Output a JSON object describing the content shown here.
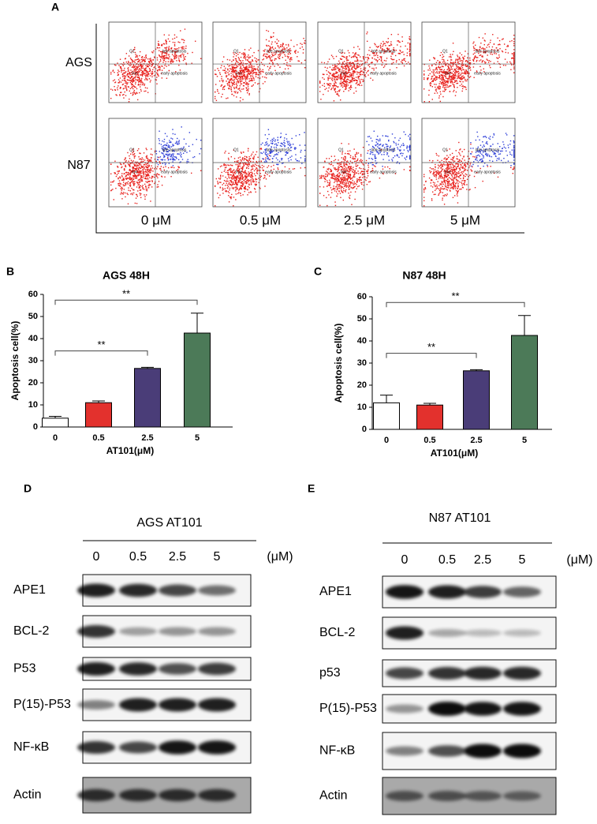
{
  "panel_a": {
    "label": "A",
    "rows": [
      "AGS",
      "N87"
    ],
    "concentrations": [
      "0 μM",
      "0.5 μM",
      "2.5 μM",
      "5 μM"
    ],
    "quadrant_labels": [
      "Q1",
      "late apoptosis",
      "live",
      "early apoptosis"
    ]
  },
  "chart_data": [
    {
      "type": "bar",
      "panel_label": "B",
      "title": "AGS 48H",
      "x_label": "AT101(μM)",
      "y_label": "Apoptosis cell(%)",
      "categories": [
        "0",
        "0.5",
        "2.5",
        "5"
      ],
      "values": [
        4,
        11,
        26.5,
        42.5
      ],
      "errors": [
        0.8,
        0.8,
        0.5,
        9
      ],
      "colors": [
        "#ffffff",
        "#e3312d",
        "#4a3d78",
        "#4c7a58"
      ],
      "ylim": [
        0,
        60
      ],
      "yticks": [
        0,
        10,
        20,
        30,
        40,
        50,
        60
      ],
      "annotations": [
        "**",
        "**"
      ]
    },
    {
      "type": "bar",
      "panel_label": "C",
      "title": "N87 48H",
      "x_label": "AT101(μM)",
      "y_label": "Apoptosis cell(%)",
      "categories": [
        "0",
        "0.5",
        "2.5",
        "5"
      ],
      "values": [
        12,
        11,
        26.5,
        42.5
      ],
      "errors": [
        3.5,
        0.8,
        0.5,
        9
      ],
      "colors": [
        "#ffffff",
        "#e3312d",
        "#4a3d78",
        "#4c7a58"
      ],
      "ylim": [
        0,
        60
      ],
      "yticks": [
        0,
        10,
        20,
        30,
        40,
        50,
        60
      ],
      "annotations": [
        "**",
        "**"
      ]
    }
  ],
  "blots": [
    {
      "label": "D",
      "title": "AGS AT101",
      "lanes": [
        "0",
        "0.5",
        "2.5",
        "5"
      ],
      "unit": "(μM)",
      "proteins": [
        "APE1",
        "BCL-2",
        "P53",
        "P(15)-P53",
        "NF-κB",
        "Actin"
      ]
    },
    {
      "label": "E",
      "title": "N87 AT101",
      "lanes": [
        "0",
        "0.5",
        "2.5",
        "5"
      ],
      "unit": "(μM)",
      "proteins": [
        "APE1",
        "BCL-2",
        "p53",
        "P(15)-P53",
        "NF-κB",
        "Actin"
      ]
    }
  ]
}
